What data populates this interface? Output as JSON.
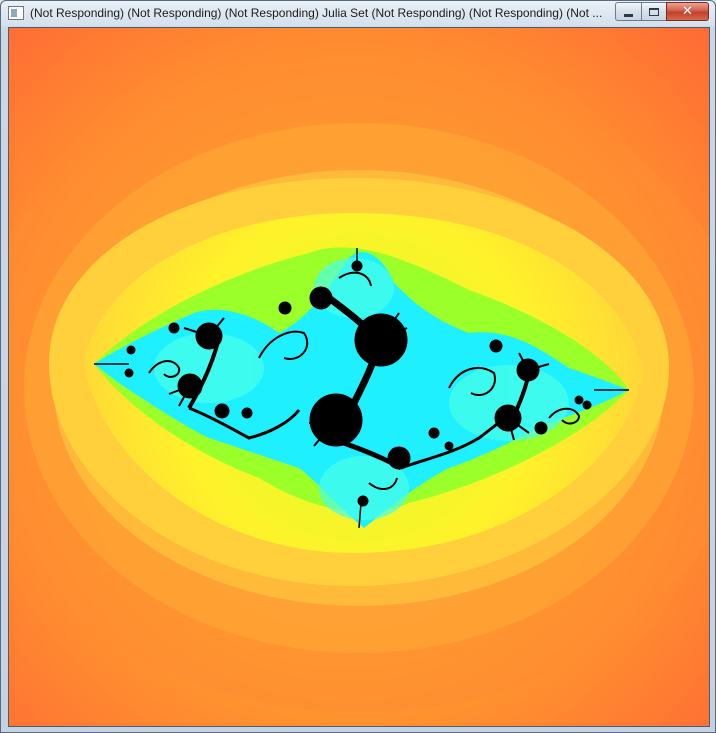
{
  "window": {
    "title": "(Not Responding) (Not Responding) (Not Responding) Julia Set (Not Responding) (Not Responding) (Not ...",
    "icon": "app-window-icon"
  },
  "controls": {
    "minimize_icon": "minimize-icon",
    "maximize_icon": "maximize-icon",
    "close_icon": "close-icon",
    "close_glyph": "✕"
  },
  "fractal": {
    "palette": {
      "outer": "#ff6f35",
      "orange": "#ff9a2e",
      "yellow": "#fff22a",
      "green": "#7eff2a",
      "cyan": "#1ef4ff",
      "set": "#000000"
    }
  }
}
